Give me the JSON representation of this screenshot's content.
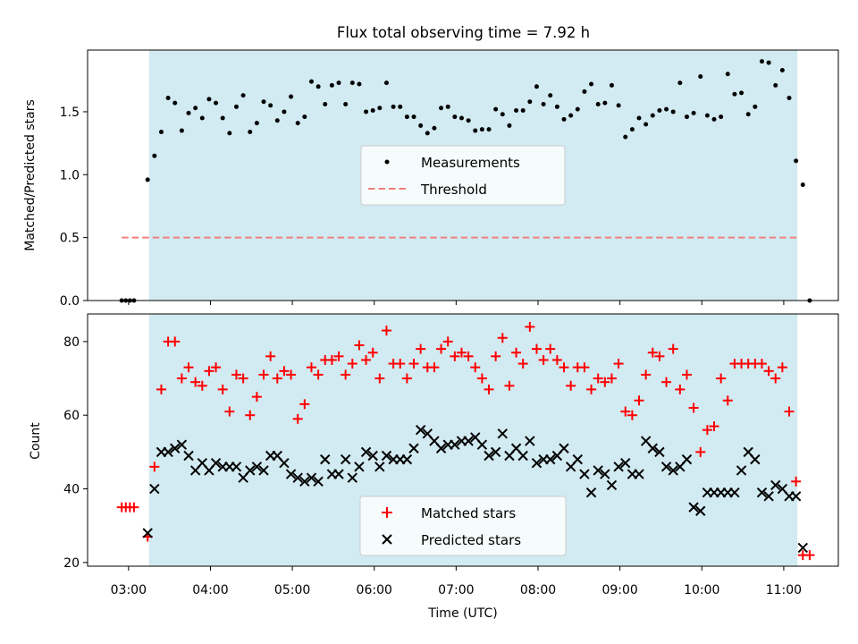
{
  "title": "Flux total observing time = 7.92 h",
  "xlabel": "Time (UTC)",
  "x_ticks": [
    "03:00",
    "04:00",
    "05:00",
    "06:00",
    "07:00",
    "08:00",
    "09:00",
    "10:00",
    "11:00"
  ],
  "colors": {
    "shade": "#add8e6",
    "threshold": "#f08080",
    "matched": "#ff0000",
    "predicted": "#000000",
    "measurement": "#000000"
  },
  "chart_data": [
    {
      "type": "scatter",
      "ylabel": "Matched/Predicted stars",
      "ylim": [
        0,
        1.99
      ],
      "y_ticks": [
        "0.0",
        "0.5",
        "1.0",
        "1.5"
      ],
      "xlim": [
        "02:30",
        "11:40"
      ],
      "shaded_region": {
        "x_start": "03:15",
        "x_end": "11:10"
      },
      "legend": {
        "placement": "center",
        "entries": [
          "Measurements",
          "Threshold"
        ]
      },
      "threshold": {
        "name": "Threshold",
        "y": 0.5,
        "x_range": [
          "02:55",
          "11:12"
        ]
      },
      "series": [
        {
          "name": "Measurements",
          "marker": "dot",
          "x": [
            "02:55",
            "02:58",
            "03:01",
            "03:04",
            "03:14",
            "03:19",
            "03:24",
            "03:29",
            "03:34",
            "03:39",
            "03:44",
            "03:49",
            "03:54",
            "03:59",
            "04:04",
            "04:09",
            "04:14",
            "04:19",
            "04:24",
            "04:29",
            "04:34",
            "04:39",
            "04:44",
            "04:49",
            "04:54",
            "04:59",
            "05:04",
            "05:09",
            "05:14",
            "05:19",
            "05:24",
            "05:29",
            "05:34",
            "05:39",
            "05:44",
            "05:49",
            "05:54",
            "05:59",
            "06:04",
            "06:09",
            "06:14",
            "06:19",
            "06:24",
            "06:29",
            "06:34",
            "06:39",
            "06:44",
            "06:49",
            "06:54",
            "06:59",
            "07:04",
            "07:09",
            "07:14",
            "07:19",
            "07:24",
            "07:29",
            "07:34",
            "07:39",
            "07:44",
            "07:49",
            "07:54",
            "07:59",
            "08:04",
            "08:09",
            "08:14",
            "08:19",
            "08:24",
            "08:29",
            "08:34",
            "08:39",
            "08:44",
            "08:49",
            "08:54",
            "08:59",
            "09:04",
            "09:09",
            "09:14",
            "09:19",
            "09:24",
            "09:29",
            "09:34",
            "09:39",
            "09:44",
            "09:49",
            "09:54",
            "09:59",
            "10:04",
            "10:09",
            "10:14",
            "10:19",
            "10:24",
            "10:29",
            "10:34",
            "10:39",
            "10:44",
            "10:49",
            "10:54",
            "10:59",
            "11:04",
            "11:09",
            "11:14",
            "11:19"
          ],
          "y": [
            0.0,
            0.0,
            0.0,
            0.0,
            0.96,
            1.15,
            1.34,
            1.61,
            1.57,
            1.35,
            1.49,
            1.53,
            1.45,
            1.6,
            1.57,
            1.45,
            1.33,
            1.54,
            1.63,
            1.34,
            1.41,
            1.58,
            1.55,
            1.43,
            1.5,
            1.62,
            1.41,
            1.46,
            1.74,
            1.7,
            1.56,
            1.71,
            1.73,
            1.56,
            1.73,
            1.72,
            1.5,
            1.51,
            1.53,
            1.73,
            1.54,
            1.54,
            1.46,
            1.46,
            1.39,
            1.33,
            1.37,
            1.53,
            1.54,
            1.46,
            1.45,
            1.43,
            1.35,
            1.36,
            1.36,
            1.52,
            1.48,
            1.39,
            1.51,
            1.51,
            1.58,
            1.7,
            1.56,
            1.63,
            1.54,
            1.44,
            1.47,
            1.52,
            1.66,
            1.72,
            1.56,
            1.57,
            1.71,
            1.55,
            1.3,
            1.36,
            1.45,
            1.4,
            1.47,
            1.51,
            1.52,
            1.5,
            1.73,
            1.46,
            1.49,
            1.78,
            1.47,
            1.44,
            1.46,
            1.8,
            1.64,
            1.65,
            1.48,
            1.54,
            1.9,
            1.89,
            1.71,
            1.83,
            1.61,
            1.11,
            0.92,
            0.0
          ]
        }
      ]
    },
    {
      "type": "scatter",
      "ylabel": "Count",
      "ylim": [
        19,
        87.5
      ],
      "y_ticks": [
        "20",
        "40",
        "60",
        "80"
      ],
      "xlim": [
        "02:30",
        "11:40"
      ],
      "shaded_region": {
        "x_start": "03:15",
        "x_end": "11:10"
      },
      "legend": {
        "placement": "lower center",
        "entries": [
          "Matched stars",
          "Predicted stars"
        ]
      },
      "series": [
        {
          "name": "Matched stars",
          "marker": "plus",
          "x": [
            "02:55",
            "02:58",
            "03:01",
            "03:04",
            "03:14",
            "03:19",
            "03:24",
            "03:29",
            "03:34",
            "03:39",
            "03:44",
            "03:49",
            "03:54",
            "03:59",
            "04:04",
            "04:09",
            "04:14",
            "04:19",
            "04:24",
            "04:29",
            "04:34",
            "04:39",
            "04:44",
            "04:49",
            "04:54",
            "04:59",
            "05:04",
            "05:09",
            "05:14",
            "05:19",
            "05:24",
            "05:29",
            "05:34",
            "05:39",
            "05:44",
            "05:49",
            "05:54",
            "05:59",
            "06:04",
            "06:09",
            "06:14",
            "06:19",
            "06:24",
            "06:29",
            "06:34",
            "06:39",
            "06:44",
            "06:49",
            "06:54",
            "06:59",
            "07:04",
            "07:09",
            "07:14",
            "07:19",
            "07:24",
            "07:29",
            "07:34",
            "07:39",
            "07:44",
            "07:49",
            "07:54",
            "07:59",
            "08:04",
            "08:09",
            "08:14",
            "08:19",
            "08:24",
            "08:29",
            "08:34",
            "08:39",
            "08:44",
            "08:49",
            "08:54",
            "08:59",
            "09:04",
            "09:09",
            "09:14",
            "09:19",
            "09:24",
            "09:29",
            "09:34",
            "09:39",
            "09:44",
            "09:49",
            "09:54",
            "09:59",
            "10:04",
            "10:09",
            "10:14",
            "10:19",
            "10:24",
            "10:29",
            "10:34",
            "10:39",
            "10:44",
            "10:49",
            "10:54",
            "10:59",
            "11:04",
            "11:09",
            "11:14",
            "11:19"
          ],
          "y": [
            35,
            35,
            35,
            35,
            27,
            46,
            67,
            80,
            80,
            70,
            73,
            69,
            68,
            72,
            73,
            67,
            61,
            71,
            70,
            60,
            65,
            71,
            76,
            70,
            72,
            71,
            59,
            63,
            73,
            71,
            75,
            75,
            76,
            71,
            74,
            79,
            75,
            77,
            70,
            83,
            74,
            74,
            70,
            74,
            78,
            73,
            73,
            78,
            80,
            76,
            77,
            76,
            73,
            70,
            67,
            76,
            81,
            68,
            77,
            74,
            84,
            78,
            75,
            78,
            75,
            73,
            68,
            73,
            73,
            67,
            70,
            69,
            70,
            74,
            61,
            60,
            64,
            71,
            77,
            76,
            69,
            78,
            67,
            71,
            62,
            50,
            56,
            57,
            70,
            64,
            74,
            74,
            74,
            74,
            74,
            72,
            70,
            73,
            61,
            42,
            22,
            22
          ]
        },
        {
          "name": "Predicted stars",
          "marker": "x",
          "x": [
            "03:14",
            "03:19",
            "03:24",
            "03:29",
            "03:34",
            "03:39",
            "03:44",
            "03:49",
            "03:54",
            "03:59",
            "04:04",
            "04:09",
            "04:14",
            "04:19",
            "04:24",
            "04:29",
            "04:34",
            "04:39",
            "04:44",
            "04:49",
            "04:54",
            "04:59",
            "05:04",
            "05:09",
            "05:14",
            "05:19",
            "05:24",
            "05:29",
            "05:34",
            "05:39",
            "05:44",
            "05:49",
            "05:54",
            "05:59",
            "06:04",
            "06:09",
            "06:14",
            "06:19",
            "06:24",
            "06:29",
            "06:34",
            "06:39",
            "06:44",
            "06:49",
            "06:54",
            "06:59",
            "07:04",
            "07:09",
            "07:14",
            "07:19",
            "07:24",
            "07:29",
            "07:34",
            "07:39",
            "07:44",
            "07:49",
            "07:54",
            "07:59",
            "08:04",
            "08:09",
            "08:14",
            "08:19",
            "08:24",
            "08:29",
            "08:34",
            "08:39",
            "08:44",
            "08:49",
            "08:54",
            "08:59",
            "09:04",
            "09:09",
            "09:14",
            "09:19",
            "09:24",
            "09:29",
            "09:34",
            "09:39",
            "09:44",
            "09:49",
            "09:54",
            "09:59",
            "10:04",
            "10:09",
            "10:14",
            "10:19",
            "10:24",
            "10:29",
            "10:34",
            "10:39",
            "10:44",
            "10:49",
            "10:54",
            "10:59",
            "11:04",
            "11:09",
            "11:14"
          ],
          "y": [
            28,
            40,
            50,
            50,
            51,
            52,
            49,
            45,
            47,
            45,
            47,
            46,
            46,
            46,
            43,
            45,
            46,
            45,
            49,
            49,
            47,
            44,
            43,
            42,
            43,
            42,
            48,
            44,
            44,
            48,
            43,
            46,
            50,
            49,
            46,
            49,
            48,
            48,
            48,
            51,
            56,
            55,
            53,
            51,
            52,
            52,
            53,
            53,
            54,
            52,
            49,
            50,
            55,
            49,
            51,
            49,
            53,
            47,
            48,
            48,
            49,
            51,
            46,
            48,
            44,
            39,
            45,
            44,
            41,
            46,
            47,
            44,
            44,
            53,
            51,
            50,
            46,
            45,
            46,
            48,
            35,
            34,
            39,
            39,
            39,
            39,
            39,
            45,
            50,
            48,
            39,
            38,
            41,
            40,
            38,
            38,
            24
          ]
        }
      ]
    }
  ]
}
